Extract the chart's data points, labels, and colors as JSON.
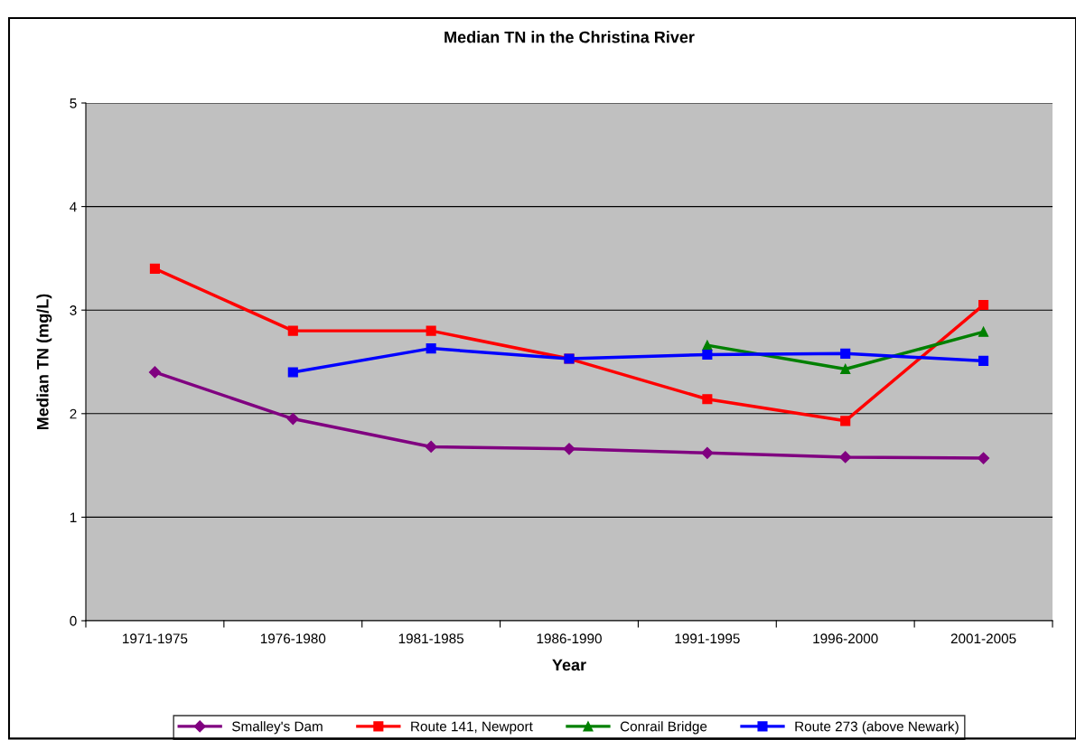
{
  "chart_data": {
    "type": "line",
    "title": "Median TN in the Christina River",
    "xlabel": "Year",
    "ylabel": "Median TN (mg/L)",
    "categories": [
      "1971-1975",
      "1976-1980",
      "1981-1985",
      "1986-1990",
      "1991-1995",
      "1996-2000",
      "2001-2005"
    ],
    "series": [
      {
        "name": "Smalley's Dam",
        "color": "#800080",
        "marker": "diamond",
        "values": [
          2.4,
          1.95,
          1.68,
          1.66,
          1.62,
          1.58,
          1.57
        ]
      },
      {
        "name": "Route 141, Newport",
        "color": "#ff0000",
        "marker": "square",
        "values": [
          3.4,
          2.8,
          2.8,
          2.53,
          2.14,
          1.93,
          3.05
        ]
      },
      {
        "name": "Conrail Bridge",
        "color": "#008000",
        "marker": "triangle",
        "values": [
          null,
          null,
          null,
          null,
          2.66,
          2.43,
          2.79
        ]
      },
      {
        "name": "Route 273 (above Newark)",
        "color": "#0000ff",
        "marker": "square",
        "values": [
          null,
          2.4,
          2.63,
          2.53,
          2.57,
          2.58,
          2.51
        ]
      }
    ],
    "ylim": [
      0,
      5
    ],
    "yticks": [
      0,
      1,
      2,
      3,
      4,
      5
    ],
    "grid": "y",
    "legend": "bottom",
    "line_style": "solid"
  }
}
